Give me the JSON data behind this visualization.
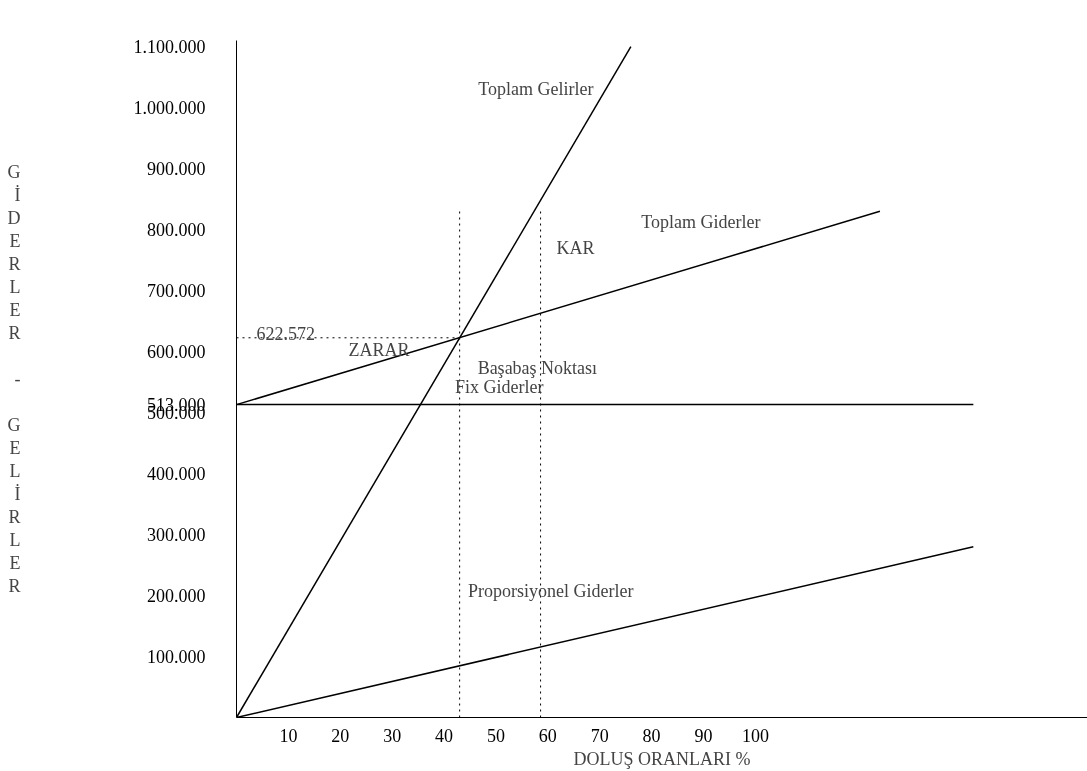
{
  "chart_data": {
    "type": "line",
    "xlabel": "DOLUŞ ORANLARI %",
    "ylabel": "GİDERLER - GELİRLER",
    "xlim": [
      0,
      164
    ],
    "ylim": [
      0,
      1110000
    ],
    "xticks": [
      10,
      20,
      30,
      40,
      50,
      60,
      70,
      80,
      90,
      100
    ],
    "yticks": [
      {
        "value": 100000,
        "label": "100.000"
      },
      {
        "value": 200000,
        "label": "200.000"
      },
      {
        "value": 300000,
        "label": "300.000"
      },
      {
        "value": 400000,
        "label": "400.000"
      },
      {
        "value": 500000,
        "label": "500.000"
      },
      {
        "value": 513000,
        "label": "513.000"
      },
      {
        "value": 600000,
        "label": "600.000"
      },
      {
        "value": 700000,
        "label": "700.000"
      },
      {
        "value": 800000,
        "label": "800.000"
      },
      {
        "value": 900000,
        "label": "900.000"
      },
      {
        "value": 1000000,
        "label": "1.000.000"
      },
      {
        "value": 1100000,
        "label": "1.100.000"
      }
    ],
    "series": [
      {
        "name": "Toplam Gelirler",
        "color": "#000000",
        "x": [
          0,
          76
        ],
        "values": [
          0,
          1100000
        ]
      },
      {
        "name": "Toplam Giderler",
        "color": "#000000",
        "x": [
          0,
          124
        ],
        "values": [
          513000,
          830000
        ]
      },
      {
        "name": "Fix Giderler",
        "color": "#000000",
        "x": [
          0,
          142
        ],
        "values": [
          513000,
          513000
        ]
      },
      {
        "name": "Proporsiyonel Giderler",
        "color": "#000000",
        "x": [
          0,
          142
        ],
        "values": [
          0,
          280000
        ]
      }
    ],
    "ref_lines": [
      {
        "axis": "y",
        "value": 622572,
        "label": "622.572",
        "line_style": "dotted"
      },
      {
        "axis": "x",
        "value": 43,
        "line_style": "dotted"
      },
      {
        "axis": "x",
        "value": 58.6,
        "line_style": "dotted"
      }
    ],
    "annotations": [
      {
        "text": "Başabaş Noktası",
        "x": 43,
        "y": 622572
      },
      "KAR",
      "ZARAR"
    ],
    "grid": false,
    "marker": "none",
    "line_style": "solid"
  }
}
